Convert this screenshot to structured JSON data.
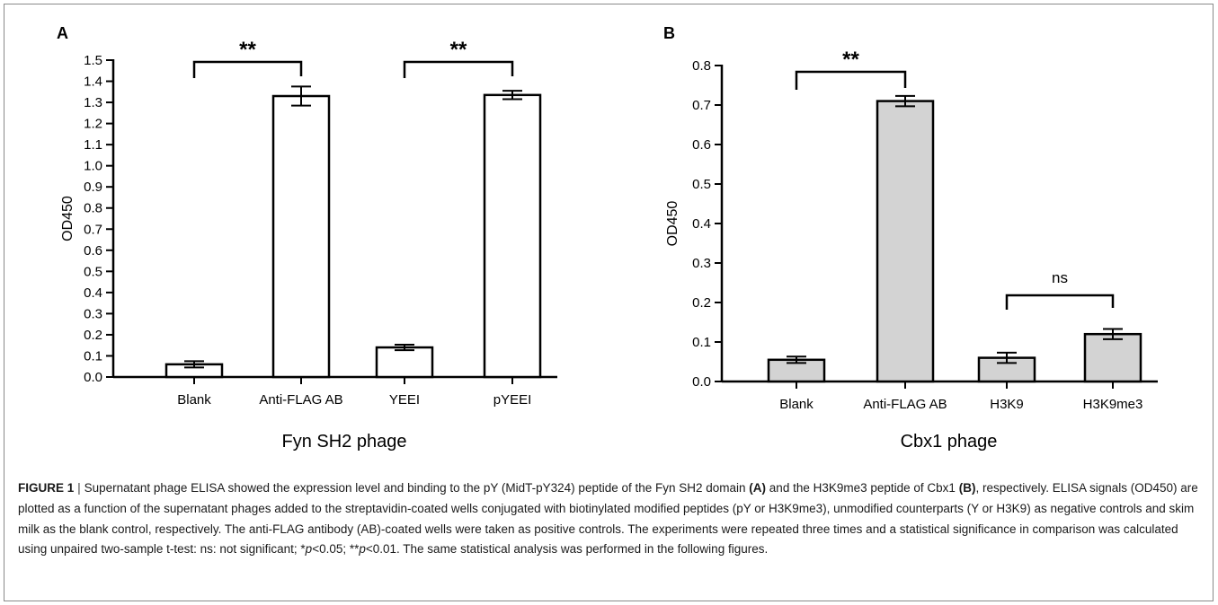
{
  "chart_data": [
    {
      "type": "bar",
      "panel": "A",
      "categories": [
        "Blank",
        "Anti-FLAG AB",
        "YEEI",
        "pYEEI"
      ],
      "values": [
        0.06,
        1.33,
        0.14,
        1.335
      ],
      "errors": [
        0.015,
        0.045,
        0.013,
        0.02
      ],
      "xlabel": "Fyn SH2 phage",
      "ylabel": "OD450",
      "ylim": [
        0,
        1.5
      ],
      "yticks": [
        "0.0",
        "0.1",
        "0.2",
        "0.3",
        "0.4",
        "0.5",
        "0.6",
        "0.7",
        "0.8",
        "0.9",
        "1.0",
        "1.1",
        "1.2",
        "1.3",
        "1.4",
        "1.5"
      ],
      "bar_color": "#ffffff",
      "significance": [
        {
          "from": 0,
          "to": 1,
          "label": "**"
        },
        {
          "from": 2,
          "to": 3,
          "label": "**"
        }
      ]
    },
    {
      "type": "bar",
      "panel": "B",
      "categories": [
        "Blank",
        "Anti-FLAG AB",
        "H3K9",
        "H3K9me3"
      ],
      "values": [
        0.055,
        0.71,
        0.06,
        0.12
      ],
      "errors": [
        0.008,
        0.013,
        0.013,
        0.013
      ],
      "xlabel": "Cbx1 phage",
      "ylabel": "OD450",
      "ylim": [
        0,
        0.8
      ],
      "yticks": [
        "0.0",
        "0.1",
        "0.2",
        "0.3",
        "0.4",
        "0.5",
        "0.6",
        "0.7",
        "0.8"
      ],
      "bar_color": "#d3d3d3",
      "significance": [
        {
          "from": 0,
          "to": 1,
          "label": "**"
        },
        {
          "from": 2,
          "to": 3,
          "label": "ns"
        }
      ]
    }
  ],
  "caption": {
    "label": "FIGURE 1",
    "separator": "|",
    "t1": " Supernatant phage ELISA showed the expression level and binding to the pY (MidT-pY324) peptide of the Fyn SH2 domain ",
    "ref_a": "(A)",
    "t2": " and the H3K9me3 peptide of Cbx1 ",
    "ref_b": "(B)",
    "t3": ", respectively. ELISA signals (OD450) are plotted as a function of the supernatant phages added to the streptavidin-coated wells conjugated with biotinylated modified peptides (pY or H3K9me3), unmodified counterparts (Y or H3K9) as negative controls and skim milk as the blank control, respectively. The anti-FLAG antibody (AB)-coated wells were taken as positive controls. The experiments were repeated three times and a statistical significance in comparison was calculated using unpaired two-sample t-test: ns: not significant; *",
    "p1": "p",
    "t4": "<0.05; **",
    "p2": "p",
    "t5": "<0.01. The same statistical analysis was performed in the following figures."
  }
}
